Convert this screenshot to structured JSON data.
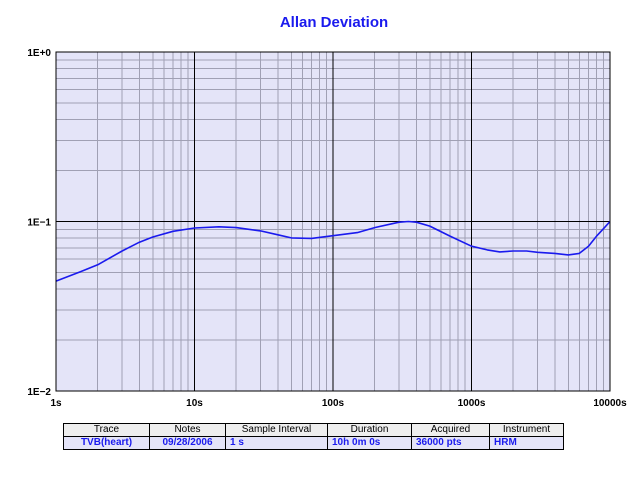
{
  "chart_data": {
    "type": "line",
    "title": "Allan Deviation",
    "x_scale": "log",
    "y_scale": "log",
    "xlim": [
      1,
      10000
    ],
    "ylim": [
      0.01,
      1
    ],
    "x_tick_labels": [
      "1s",
      "10s",
      "100s",
      "1000s",
      "10000s"
    ],
    "y_tick_labels": [
      "1E+0",
      "1E−1",
      "1E−2"
    ],
    "grid": true,
    "series": [
      {
        "color": "#1a1aee",
        "points": [
          [
            1,
            0.0445
          ],
          [
            1.5,
            0.0505
          ],
          [
            2,
            0.0555
          ],
          [
            3,
            0.067
          ],
          [
            4,
            0.0755
          ],
          [
            5,
            0.081
          ],
          [
            7,
            0.0875
          ],
          [
            10,
            0.0915
          ],
          [
            15,
            0.093
          ],
          [
            20,
            0.092
          ],
          [
            30,
            0.088
          ],
          [
            40,
            0.0835
          ],
          [
            50,
            0.08
          ],
          [
            70,
            0.0795
          ],
          [
            100,
            0.0825
          ],
          [
            150,
            0.086
          ],
          [
            200,
            0.092
          ],
          [
            300,
            0.099
          ],
          [
            350,
            0.1
          ],
          [
            400,
            0.099
          ],
          [
            500,
            0.094
          ],
          [
            700,
            0.082
          ],
          [
            1000,
            0.0715
          ],
          [
            1300,
            0.068
          ],
          [
            1600,
            0.0662
          ],
          [
            2000,
            0.067
          ],
          [
            2500,
            0.067
          ],
          [
            3000,
            0.0658
          ],
          [
            4000,
            0.0648
          ],
          [
            5000,
            0.0635
          ],
          [
            6000,
            0.0648
          ],
          [
            7000,
            0.0715
          ],
          [
            8000,
            0.082
          ],
          [
            9000,
            0.091
          ],
          [
            10000,
            0.1
          ]
        ]
      }
    ]
  },
  "info_table": {
    "headers": [
      "Trace",
      "Notes",
      "Sample Interval",
      "Duration",
      "Acquired",
      "Instrument"
    ],
    "row": [
      "TVB(heart)",
      "09/28/2006",
      "1 s",
      "10h 0m 0s",
      "36000 pts",
      "HRM"
    ]
  },
  "colors": {
    "plot_background": "#e4e4f8",
    "series_line": "#1a1aee",
    "title": "#1a1aee",
    "grid_minor": "#a0a0b4",
    "grid_major": "#000000"
  }
}
